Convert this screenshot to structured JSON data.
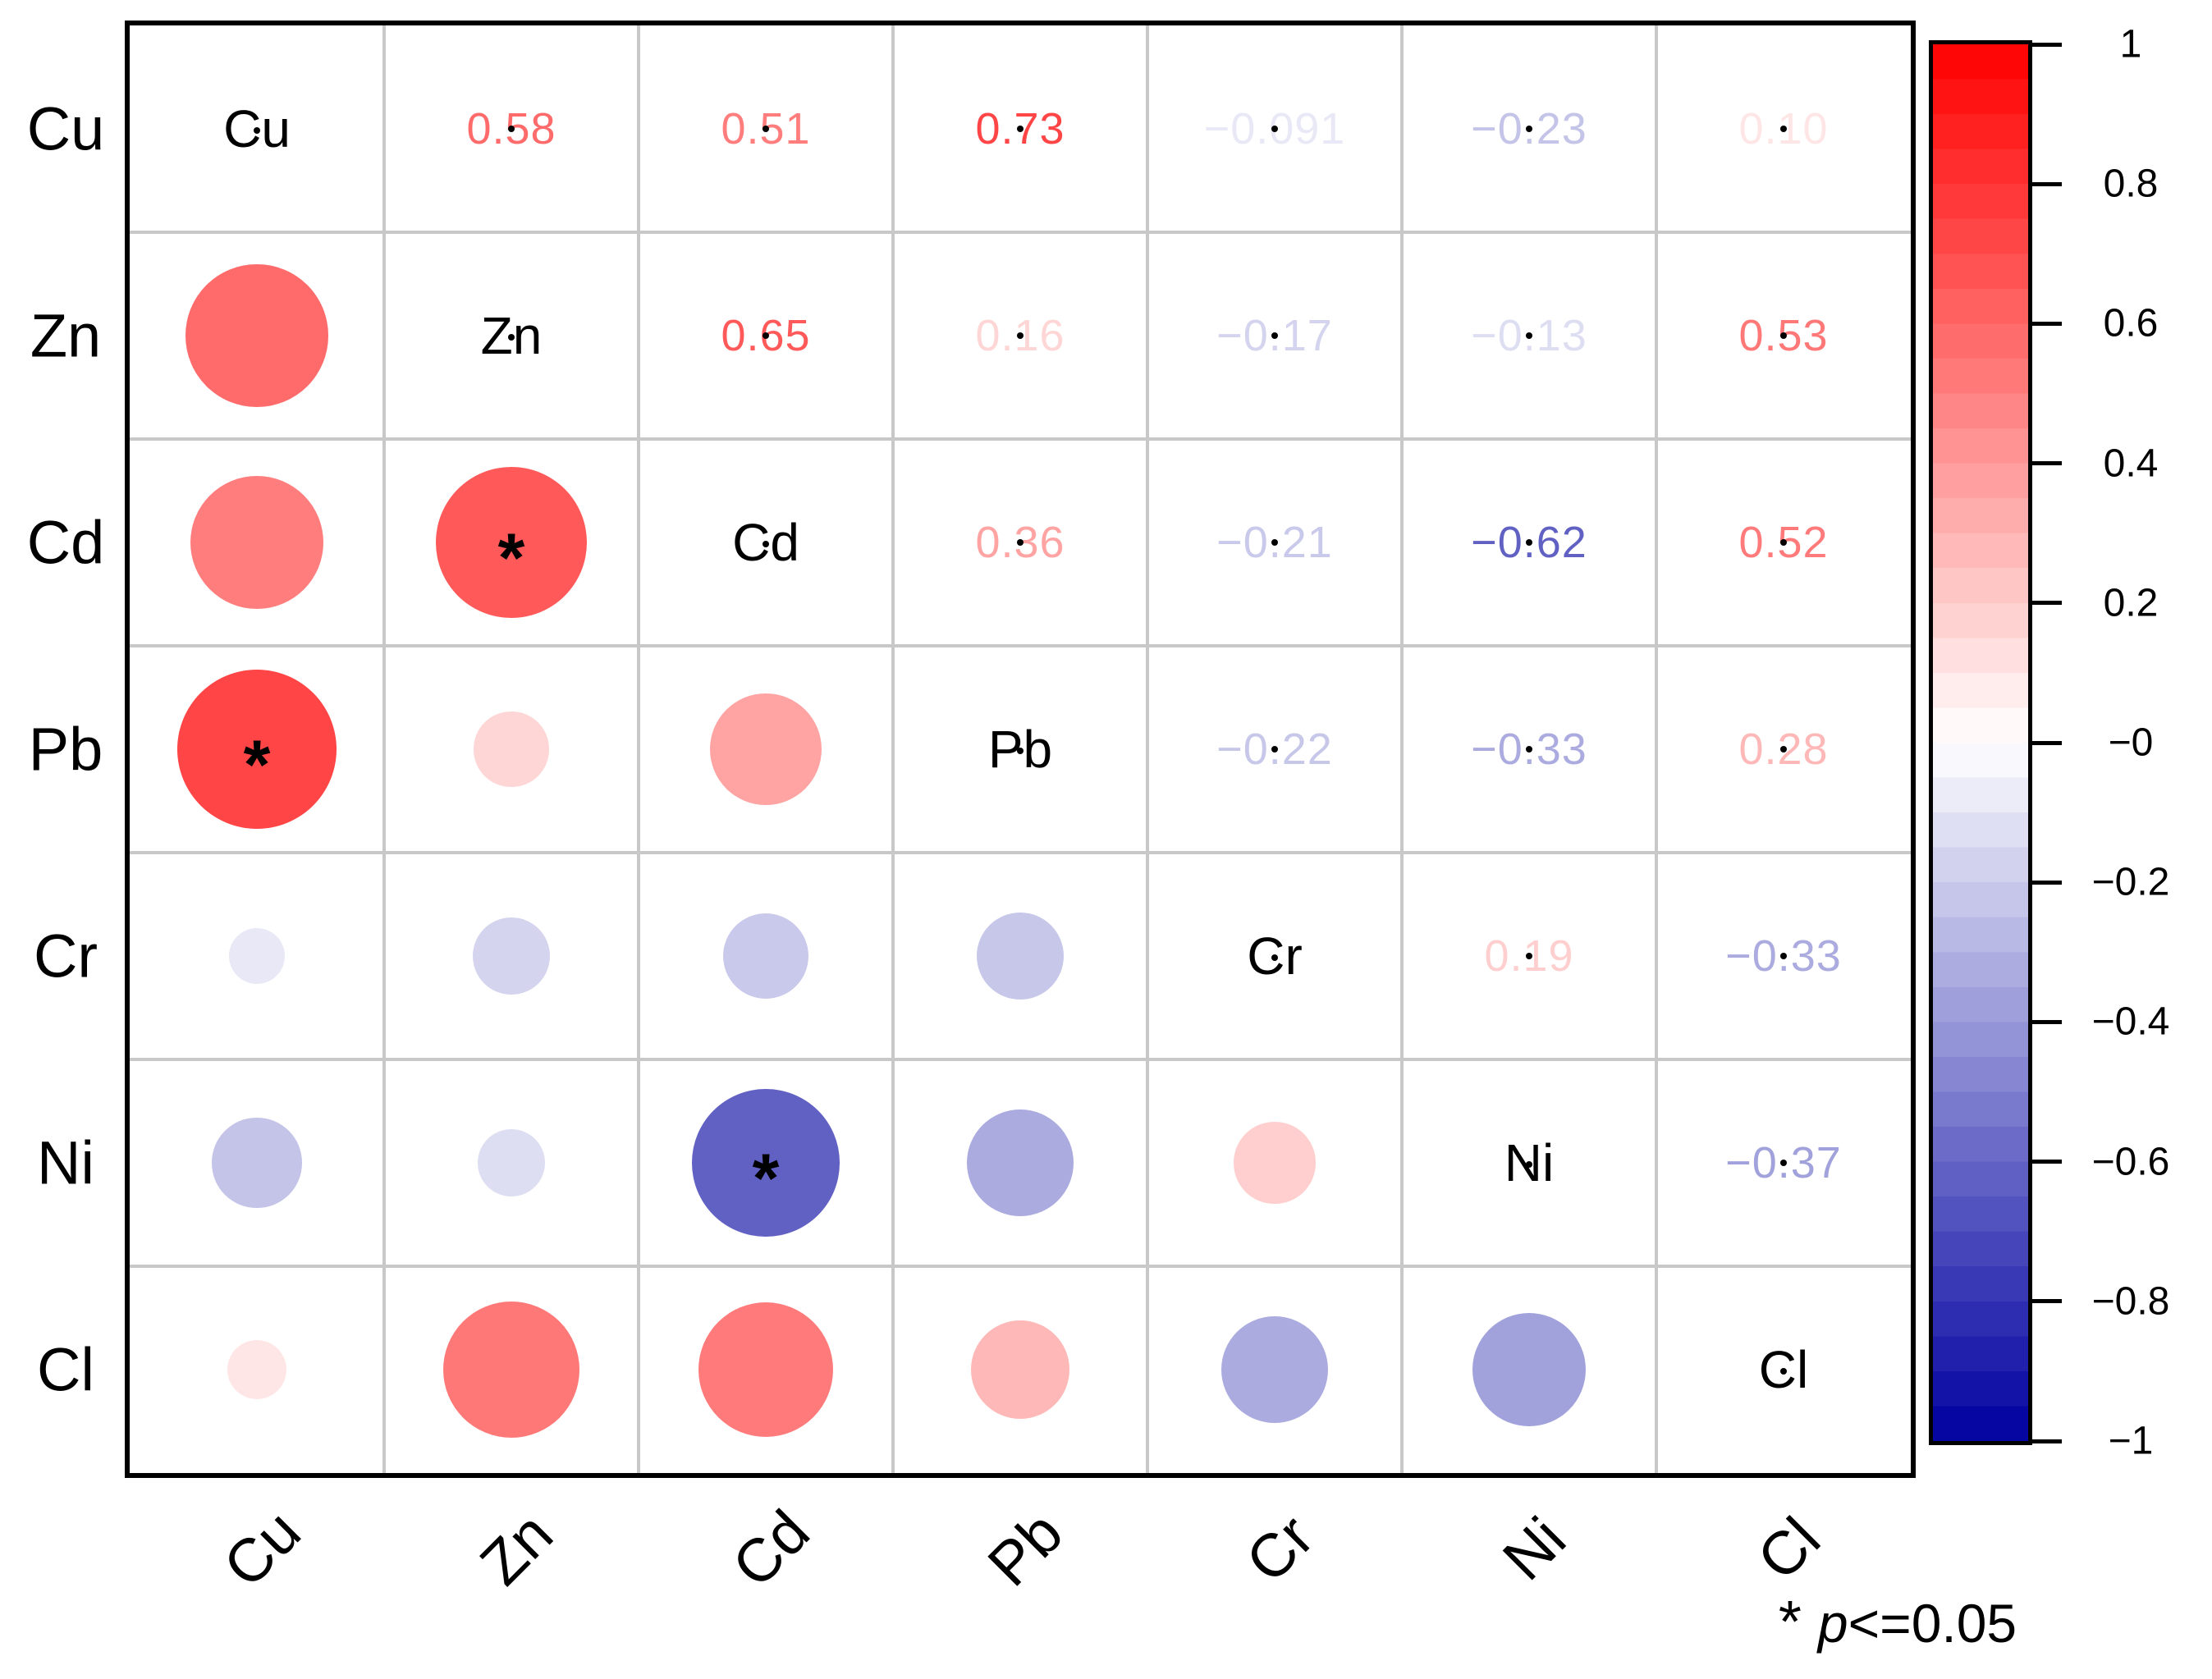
{
  "chart_data": {
    "type": "heatmap",
    "subtype": "correlation-matrix-mixed",
    "upper_triangle": "numbers",
    "lower_triangle": "circles",
    "circle_scale": "diameter proportional to sqrt(|r|)",
    "variables": [
      "Cu",
      "Zn",
      "Cd",
      "Pb",
      "Cr",
      "Ni",
      "Cl"
    ],
    "pairs": [
      {
        "row": "Cu",
        "col": "Zn",
        "value": 0.58,
        "label": "0.58",
        "significant": false
      },
      {
        "row": "Cu",
        "col": "Cd",
        "value": 0.51,
        "label": "0.51",
        "significant": false
      },
      {
        "row": "Cu",
        "col": "Pb",
        "value": 0.73,
        "label": "0.73",
        "significant": true
      },
      {
        "row": "Cu",
        "col": "Cr",
        "value": -0.091,
        "label": "−0.091",
        "significant": false
      },
      {
        "row": "Cu",
        "col": "Ni",
        "value": -0.23,
        "label": "−0.23",
        "significant": false
      },
      {
        "row": "Cu",
        "col": "Cl",
        "value": 0.1,
        "label": "0.10",
        "significant": false
      },
      {
        "row": "Zn",
        "col": "Cd",
        "value": 0.65,
        "label": "0.65",
        "significant": true
      },
      {
        "row": "Zn",
        "col": "Pb",
        "value": 0.16,
        "label": "0.16",
        "significant": false
      },
      {
        "row": "Zn",
        "col": "Cr",
        "value": -0.17,
        "label": "−0.17",
        "significant": false
      },
      {
        "row": "Zn",
        "col": "Ni",
        "value": -0.13,
        "label": "−0.13",
        "significant": false
      },
      {
        "row": "Zn",
        "col": "Cl",
        "value": 0.53,
        "label": "0.53",
        "significant": false
      },
      {
        "row": "Cd",
        "col": "Pb",
        "value": 0.36,
        "label": "0.36",
        "significant": false
      },
      {
        "row": "Cd",
        "col": "Cr",
        "value": -0.21,
        "label": "−0.21",
        "significant": false
      },
      {
        "row": "Cd",
        "col": "Ni",
        "value": -0.62,
        "label": "−0.62",
        "significant": true
      },
      {
        "row": "Cd",
        "col": "Cl",
        "value": 0.52,
        "label": "0.52",
        "significant": false
      },
      {
        "row": "Pb",
        "col": "Cr",
        "value": -0.22,
        "label": "−0.22",
        "significant": false
      },
      {
        "row": "Pb",
        "col": "Ni",
        "value": -0.33,
        "label": "−0.33",
        "significant": false
      },
      {
        "row": "Pb",
        "col": "Cl",
        "value": 0.28,
        "label": "0.28",
        "significant": false
      },
      {
        "row": "Cr",
        "col": "Ni",
        "value": 0.19,
        "label": "0.19",
        "significant": false
      },
      {
        "row": "Cr",
        "col": "Cl",
        "value": -0.33,
        "label": "−0.33",
        "significant": false
      },
      {
        "row": "Ni",
        "col": "Cl",
        "value": -0.37,
        "label": "−0.37",
        "significant": false
      }
    ],
    "colorbar": {
      "max": 1,
      "min": -1,
      "tick_labels": [
        "1",
        "0.8",
        "0.6",
        "0.4",
        "0.2",
        "−0",
        "−0.2",
        "−0.4",
        "−0.6",
        "−0.8",
        "−1"
      ],
      "colors": {
        "positive": "#ff0000",
        "zero": "#ffffff",
        "negative": "#0000a0"
      },
      "steps": 40
    },
    "legend": {
      "star": "*",
      "p": "p",
      "condition": "<=0.05",
      "full_text": "* p<=0.05"
    },
    "grid": "on",
    "axis_label_rotation_deg": 45
  }
}
